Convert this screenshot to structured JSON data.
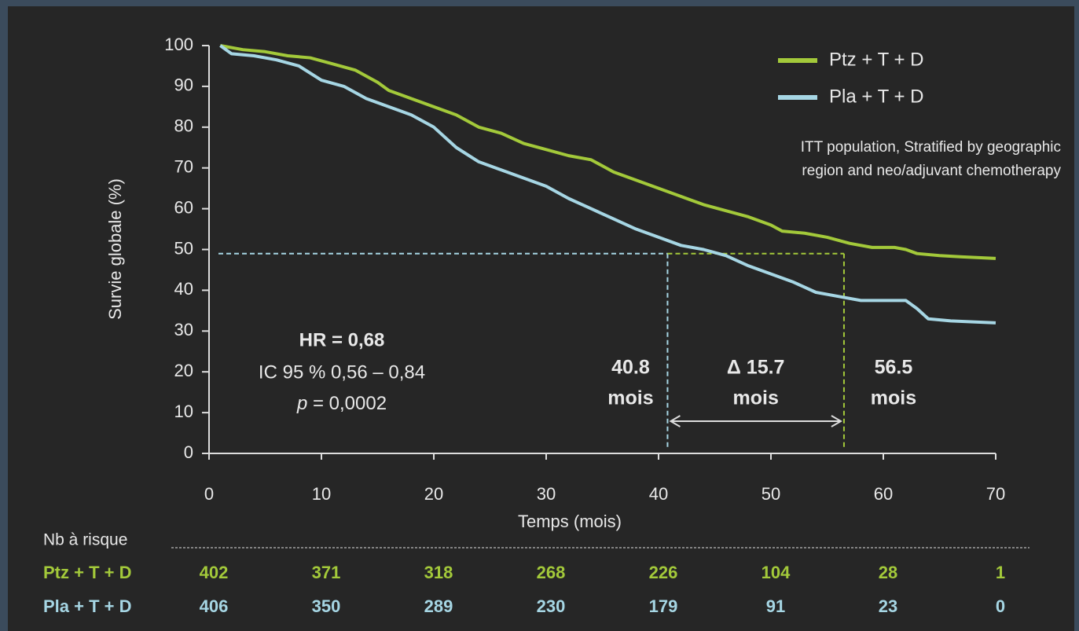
{
  "chart_data": {
    "type": "line",
    "y_label": "Survie globale (%)",
    "x_label": "Temps (mois)",
    "xlim": [
      0,
      70
    ],
    "ylim": [
      0,
      100
    ],
    "xticks": [
      0,
      10,
      20,
      30,
      40,
      50,
      60,
      70
    ],
    "yticks": [
      0,
      10,
      20,
      30,
      40,
      50,
      60,
      70,
      80,
      90,
      100
    ],
    "legend": "upper right",
    "series": [
      {
        "name": "Ptz + T + D",
        "color": "#a3c93a",
        "x": [
          1,
          3,
          5,
          7,
          9,
          11,
          13,
          15,
          16,
          18,
          20,
          22,
          24,
          26,
          28,
          30,
          32,
          34,
          36,
          38,
          40,
          42,
          44,
          46,
          48,
          50,
          51,
          53,
          55,
          57,
          59,
          61,
          62,
          63,
          65,
          67,
          70
        ],
        "values": [
          100,
          99,
          98.5,
          97.5,
          97,
          95.5,
          94,
          91,
          89,
          87,
          85,
          83,
          80,
          78.5,
          76,
          74.5,
          73,
          72,
          69,
          67,
          65,
          63,
          61,
          59.5,
          58,
          56,
          54.5,
          54,
          53,
          51.5,
          50.5,
          50.5,
          50,
          49,
          48.5,
          48.2,
          47.8
        ],
        "median": 56.5
      },
      {
        "name": "Pla + T + D",
        "color": "#a6d6e4",
        "x": [
          1,
          2,
          4,
          6,
          8,
          10,
          12,
          14,
          16,
          18,
          20,
          22,
          24,
          26,
          28,
          30,
          32,
          34,
          36,
          38,
          40,
          42,
          44,
          46,
          48,
          50,
          52,
          54,
          56,
          58,
          60,
          62,
          63,
          64,
          66,
          70
        ],
        "values": [
          100,
          98,
          97.5,
          96.5,
          95,
          91.5,
          90,
          87,
          85,
          83,
          80,
          75,
          71.5,
          69.5,
          67.5,
          65.5,
          62.5,
          60,
          57.5,
          55,
          53,
          51,
          50,
          48.5,
          46,
          44,
          42,
          39.5,
          38.5,
          37.5,
          37.5,
          37.5,
          35.5,
          33,
          32.5,
          32
        ],
        "median": 40.8
      }
    ],
    "median_level": 49,
    "median_unit": "mois",
    "delta_label": "Δ 15.7",
    "stats": {
      "hr": "HR = 0,68",
      "ci": "IC 95 % 0,56 – 0,84",
      "p_symbol": "p",
      "p_value": " = 0,0002"
    },
    "note": [
      "ITT population, Stratified by geographic",
      "region and neo/adjuvant chemotherapy"
    ],
    "risk_table": {
      "title": "Nb à risque",
      "rows": [
        [
          402,
          371,
          318,
          268,
          226,
          104,
          28,
          1
        ],
        [
          406,
          350,
          289,
          230,
          179,
          91,
          23,
          0
        ]
      ]
    }
  }
}
